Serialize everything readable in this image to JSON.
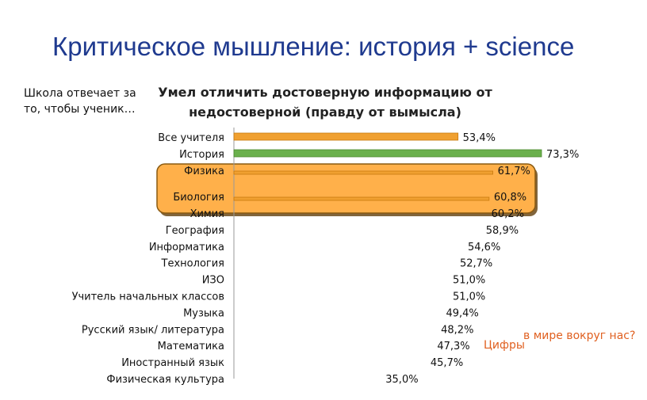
{
  "slide": {
    "title": "Критическое мышление: история + science",
    "side_note": "Школа отвечает за то, чтобы ученик…"
  },
  "callouts": {
    "line1": "в мире вокруг нас?",
    "line2": "Цифры"
  },
  "colors": {
    "title": "#1f3a8f",
    "bar_default": "#f0a030",
    "bar_highlight": "#6ab04c",
    "highlight_box": "#ffb04a",
    "callout": "#e06020"
  },
  "chart_data": {
    "type": "bar",
    "orientation": "horizontal",
    "title": "Умел отличить достоверную информацию от недостоверной (правду от вымысла)",
    "xlabel": "",
    "ylabel": "",
    "xlim": [
      0,
      75
    ],
    "categories": [
      "Все учителя",
      "История",
      "Физика",
      "Биология",
      "Химия",
      "География",
      "Информатика",
      "Технология",
      "ИЗО",
      "Учитель начальных классов",
      "Музыка",
      "Русский язык/ литература",
      "Математика",
      "Иностранный язык",
      "Физическая культура"
    ],
    "values": [
      53.4,
      73.3,
      61.7,
      60.8,
      60.2,
      58.9,
      54.6,
      52.7,
      51.0,
      51.0,
      49.4,
      48.2,
      47.3,
      45.7,
      35.0
    ],
    "value_labels": [
      "53,4%",
      "73,3%",
      "61,7%",
      "60,8%",
      "60,2%",
      "58,9%",
      "54,6%",
      "52,7%",
      "51,0%",
      "51,0%",
      "49,4%",
      "48,2%",
      "47,3%",
      "45,7%",
      "35,0%"
    ],
    "highlight_category": "История",
    "highlight_box_categories": [
      "Физика",
      "Биология"
    ],
    "legend": "none",
    "grid": false
  }
}
